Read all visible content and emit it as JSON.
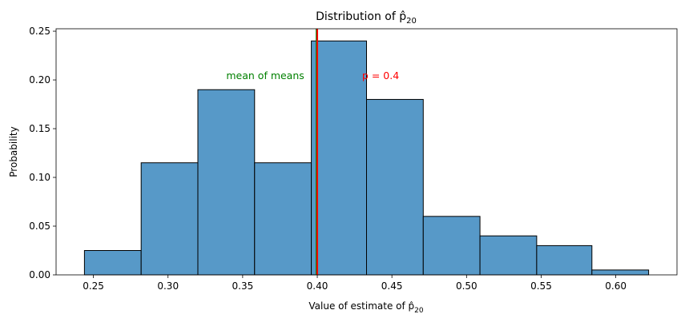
{
  "chart_data": {
    "type": "bar",
    "title": "Distribution of p̂",
    "title_subscript": "20",
    "xlabel": "Value of estimate of p̂",
    "xlabel_subscript": "20",
    "ylabel": "Probability",
    "xlim": [
      0.225,
      0.641
    ],
    "ylim": [
      0,
      0.2525
    ],
    "x_ticks": [
      0.25,
      0.3,
      0.35,
      0.4,
      0.45,
      0.5,
      0.55,
      0.6
    ],
    "x_tick_labels": [
      "0.25",
      "0.30",
      "0.35",
      "0.40",
      "0.45",
      "0.50",
      "0.55",
      "0.60"
    ],
    "y_ticks": [
      0,
      0.05,
      0.1,
      0.15,
      0.2,
      0.25
    ],
    "y_tick_labels": [
      "0.00",
      "0.05",
      "0.10",
      "0.15",
      "0.20",
      "0.25"
    ],
    "grid": false,
    "bar_color": "#5799c8",
    "edge_color": "#000000",
    "bins": [
      {
        "x0": 0.244,
        "x1": 0.282,
        "value": 0.025
      },
      {
        "x0": 0.282,
        "x1": 0.32,
        "value": 0.115
      },
      {
        "x0": 0.32,
        "x1": 0.358,
        "value": 0.19
      },
      {
        "x0": 0.358,
        "x1": 0.396,
        "value": 0.115
      },
      {
        "x0": 0.396,
        "x1": 0.433,
        "value": 0.24
      },
      {
        "x0": 0.433,
        "x1": 0.471,
        "value": 0.18
      },
      {
        "x0": 0.471,
        "x1": 0.509,
        "value": 0.06
      },
      {
        "x0": 0.509,
        "x1": 0.547,
        "value": 0.04
      },
      {
        "x0": 0.547,
        "x1": 0.584,
        "value": 0.03
      },
      {
        "x0": 0.584,
        "x1": 0.622,
        "value": 0.005
      }
    ],
    "reference_lines": [
      {
        "x": 0.3995,
        "color": "#008000",
        "label": "mean of means",
        "label_x": 0.339,
        "label_y": 0.201
      },
      {
        "x": 0.4,
        "color": "#ff0000",
        "label": "p = 0.4",
        "label_x": 0.43,
        "label_y": 0.201
      }
    ]
  }
}
